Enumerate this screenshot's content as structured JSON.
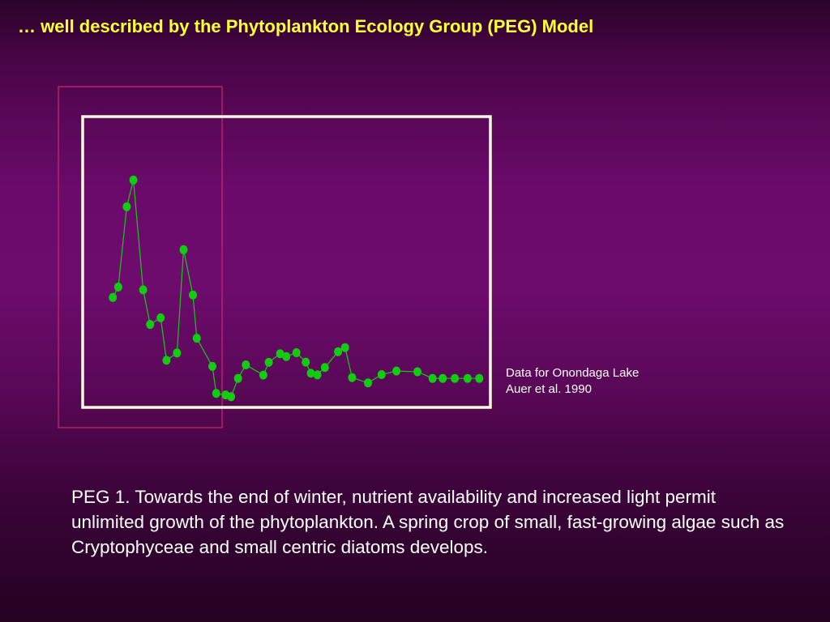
{
  "slide": {
    "title": "… well described by the Phytoplankton Ecology Group (PEG) Model",
    "source_line1": "Data for Onondaga Lake",
    "source_line2": "Auer et al. 1990",
    "caption": "PEG 1. Towards the end of winter, nutrient availability and increased light permit unlimited growth of the phytoplankton.  A spring crop of small, fast-growing algae such as Cryptophyceae and small centric diatoms develops."
  },
  "colors": {
    "title": "#ffff33",
    "frame": "#fffbe0",
    "highlight": "#cc2266",
    "series": "#11cc11",
    "text": "#ffffff"
  },
  "chart_data": {
    "type": "line",
    "title": "",
    "xlabel": "",
    "ylabel": "",
    "xlim": [
      0,
      100
    ],
    "ylim": [
      0,
      100
    ],
    "grid": false,
    "axes_labels_shown": false,
    "highlight_range_x": [
      0,
      31
    ],
    "series": [
      {
        "x": [
          4.2,
          5.6,
          7.8,
          9.5,
          12.0,
          13.8,
          16.5,
          18.0,
          20.7,
          22.4,
          24.8,
          25.8,
          29.8,
          30.8,
          33.2,
          34.6,
          36.4,
          38.4,
          42.9,
          44.3,
          47.2,
          48.8,
          51.4,
          53.8,
          55.1,
          56.8,
          58.7,
          62.1,
          63.9,
          65.7,
          69.8,
          73.3,
          77.1,
          82.5,
          86.4,
          89.0,
          92.1,
          95.4,
          98.4
        ],
        "y": [
          41.3,
          45.4,
          77.0,
          87.5,
          44.3,
          30.7,
          33.3,
          16.6,
          19.5,
          60.1,
          42.3,
          25.3,
          14.2,
          3.6,
          3.0,
          2.3,
          9.5,
          14.8,
          10.8,
          15.8,
          19.2,
          18.1,
          19.6,
          15.9,
          11.5,
          10.9,
          13.8,
          20.0,
          21.6,
          9.8,
          7.7,
          11.0,
          12.4,
          12.1,
          9.5,
          9.5,
          9.5,
          9.5,
          9.5
        ]
      }
    ]
  }
}
